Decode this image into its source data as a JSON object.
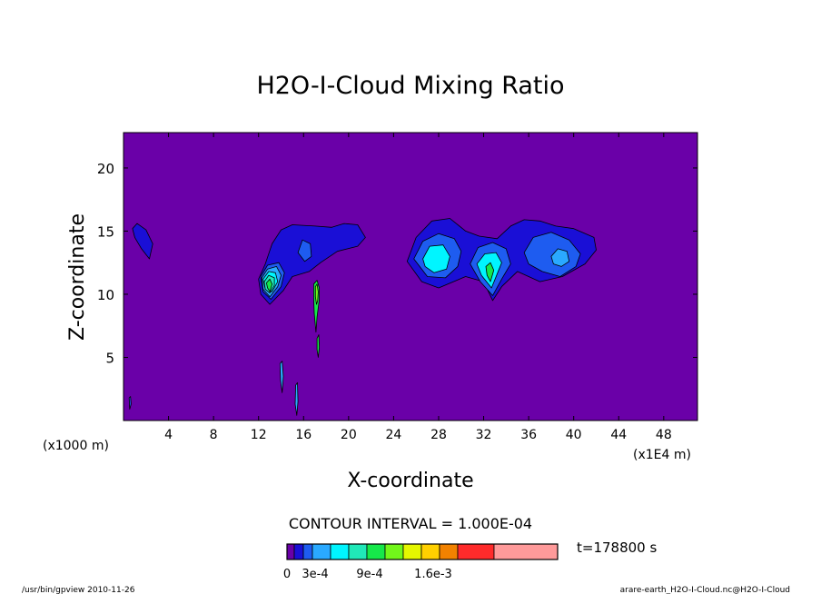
{
  "chart_data": {
    "type": "contour",
    "title": "H2O-I-Cloud Mixing Ratio",
    "xlabel": "X-coordinate",
    "ylabel": "Z-coordinate",
    "x_scale_label": "(x1000 m)",
    "x_unit_label": "(x1E4 m)",
    "xlim": [
      0,
      51
    ],
    "ylim": [
      0,
      22.8
    ],
    "x_ticks": [
      4,
      8,
      12,
      16,
      20,
      24,
      28,
      32,
      36,
      40,
      44,
      48
    ],
    "y_ticks": [
      5,
      10,
      15,
      20
    ],
    "contour_interval_text": "CONTOUR INTERVAL = 1.000E-04",
    "time_text": "t=178800 s",
    "colorbar": {
      "colors": [
        "#6a00a8",
        "#1a0fd6",
        "#1e5cf0",
        "#2aa9ff",
        "#00f5ff",
        "#20e8b8",
        "#16e84a",
        "#72f71a",
        "#e5f700",
        "#ffd000",
        "#f28200",
        "#ff2b2b",
        "#ff9a9a"
      ],
      "labels": [
        "0",
        "3e-4",
        "9e-4",
        "1.6e-3"
      ]
    },
    "regions": [
      {
        "level": 1,
        "points": [
          [
            0.8,
            15.2
          ],
          [
            1.2,
            15.6
          ],
          [
            2.0,
            15.1
          ],
          [
            2.6,
            14.0
          ],
          [
            2.3,
            12.8
          ],
          [
            1.6,
            13.6
          ],
          [
            1.0,
            14.5
          ]
        ]
      },
      {
        "level": 1,
        "points": [
          [
            12.0,
            11.2
          ],
          [
            12.6,
            12.4
          ],
          [
            13.2,
            14.0
          ],
          [
            14.0,
            15.1
          ],
          [
            15.0,
            15.5
          ],
          [
            17.0,
            15.4
          ],
          [
            18.5,
            15.3
          ],
          [
            19.6,
            15.6
          ],
          [
            20.8,
            15.5
          ],
          [
            21.5,
            14.5
          ],
          [
            20.8,
            13.8
          ],
          [
            19.0,
            13.4
          ],
          [
            17.5,
            12.5
          ],
          [
            16.5,
            11.8
          ],
          [
            15.0,
            11.4
          ],
          [
            14.2,
            10.3
          ],
          [
            13.0,
            9.2
          ],
          [
            12.2,
            10.0
          ]
        ]
      },
      {
        "level": 1,
        "points": [
          [
            25.2,
            12.6
          ],
          [
            26.0,
            14.5
          ],
          [
            27.4,
            15.8
          ],
          [
            29.0,
            16.0
          ],
          [
            30.4,
            15.0
          ],
          [
            31.6,
            14.6
          ],
          [
            33.2,
            14.4
          ],
          [
            34.4,
            15.4
          ],
          [
            35.6,
            15.9
          ],
          [
            37.0,
            15.8
          ],
          [
            38.4,
            15.4
          ],
          [
            40.0,
            15.2
          ],
          [
            41.8,
            14.5
          ],
          [
            42.0,
            13.5
          ],
          [
            41.0,
            12.4
          ],
          [
            39.0,
            11.4
          ],
          [
            37.0,
            11.0
          ],
          [
            35.0,
            11.8
          ],
          [
            33.6,
            10.6
          ],
          [
            32.8,
            9.5
          ],
          [
            32.0,
            11.0
          ],
          [
            30.4,
            11.4
          ],
          [
            28.0,
            10.5
          ],
          [
            26.5,
            11.0
          ]
        ]
      },
      {
        "level": 2,
        "points": [
          [
            12.2,
            11.4
          ],
          [
            12.8,
            12.3
          ],
          [
            13.8,
            12.5
          ],
          [
            14.3,
            11.7
          ],
          [
            14.0,
            10.6
          ],
          [
            13.1,
            9.6
          ],
          [
            12.4,
            10.2
          ]
        ]
      },
      {
        "level": 2,
        "points": [
          [
            15.5,
            13.3
          ],
          [
            15.9,
            14.3
          ],
          [
            16.6,
            14.0
          ],
          [
            16.7,
            13.0
          ],
          [
            16.1,
            12.6
          ]
        ]
      },
      {
        "level": 2,
        "points": [
          [
            25.8,
            12.8
          ],
          [
            26.6,
            14.2
          ],
          [
            28.0,
            14.8
          ],
          [
            29.4,
            14.4
          ],
          [
            30.0,
            13.4
          ],
          [
            29.7,
            12.2
          ],
          [
            28.6,
            11.3
          ],
          [
            27.0,
            11.4
          ]
        ]
      },
      {
        "level": 2,
        "points": [
          [
            30.8,
            12.4
          ],
          [
            31.5,
            13.7
          ],
          [
            32.8,
            14.1
          ],
          [
            34.0,
            13.6
          ],
          [
            34.4,
            12.4
          ],
          [
            33.6,
            11.2
          ],
          [
            32.8,
            9.9
          ],
          [
            31.7,
            11.0
          ]
        ]
      },
      {
        "level": 2,
        "points": [
          [
            35.6,
            13.3
          ],
          [
            36.4,
            14.5
          ],
          [
            38.0,
            14.9
          ],
          [
            39.6,
            14.3
          ],
          [
            40.6,
            13.2
          ],
          [
            40.2,
            12.2
          ],
          [
            38.8,
            11.4
          ],
          [
            37.2,
            11.8
          ],
          [
            36.0,
            12.4
          ]
        ]
      },
      {
        "level": 3,
        "points": [
          [
            12.3,
            11.3
          ],
          [
            12.8,
            12.0
          ],
          [
            13.6,
            12.2
          ],
          [
            14.0,
            11.5
          ],
          [
            13.7,
            10.6
          ],
          [
            13.0,
            9.8
          ],
          [
            12.4,
            10.4
          ]
        ]
      },
      {
        "level": 3,
        "points": [
          [
            38.0,
            13.0
          ],
          [
            38.6,
            13.6
          ],
          [
            39.4,
            13.4
          ],
          [
            39.6,
            12.6
          ],
          [
            38.9,
            12.2
          ],
          [
            38.2,
            12.4
          ]
        ]
      },
      {
        "level": 4,
        "points": [
          [
            12.4,
            11.2
          ],
          [
            12.9,
            11.8
          ],
          [
            13.5,
            11.7
          ],
          [
            13.7,
            11.0
          ],
          [
            13.2,
            10.2
          ],
          [
            12.6,
            10.4
          ]
        ]
      },
      {
        "level": 4,
        "points": [
          [
            26.6,
            12.8
          ],
          [
            27.2,
            13.8
          ],
          [
            28.4,
            13.9
          ],
          [
            29.0,
            13.0
          ],
          [
            28.7,
            12.0
          ],
          [
            27.6,
            11.7
          ],
          [
            26.8,
            12.2
          ]
        ]
      },
      {
        "level": 4,
        "points": [
          [
            31.4,
            12.4
          ],
          [
            32.1,
            13.2
          ],
          [
            33.1,
            13.3
          ],
          [
            33.6,
            12.5
          ],
          [
            33.2,
            11.6
          ],
          [
            32.7,
            10.5
          ],
          [
            31.8,
            11.5
          ]
        ]
      },
      {
        "level": 5,
        "points": [
          [
            12.5,
            11.0
          ],
          [
            12.9,
            11.5
          ],
          [
            13.4,
            11.3
          ],
          [
            13.4,
            10.7
          ],
          [
            13.0,
            10.1
          ],
          [
            12.6,
            10.4
          ]
        ]
      },
      {
        "level": 6,
        "points": [
          [
            12.7,
            10.9
          ],
          [
            13.0,
            11.2
          ],
          [
            13.2,
            10.8
          ],
          [
            13.0,
            10.2
          ],
          [
            12.8,
            10.5
          ]
        ]
      },
      {
        "level": 6,
        "points": [
          [
            32.2,
            12.2
          ],
          [
            32.6,
            12.5
          ],
          [
            32.9,
            11.9
          ],
          [
            32.6,
            11.0
          ],
          [
            32.3,
            11.5
          ]
        ]
      },
      {
        "level": 6,
        "points": [
          [
            16.9,
            10.8
          ],
          [
            17.2,
            11.1
          ],
          [
            17.4,
            10.5
          ],
          [
            17.4,
            9.6
          ],
          [
            17.2,
            8.2
          ],
          [
            17.1,
            7.0
          ],
          [
            16.95,
            8.5
          ],
          [
            16.9,
            9.8
          ]
        ]
      },
      {
        "level": 7,
        "points": [
          [
            17.05,
            10.6
          ],
          [
            17.2,
            10.8
          ],
          [
            17.3,
            10.2
          ],
          [
            17.25,
            9.5
          ],
          [
            17.15,
            9.2
          ],
          [
            17.05,
            9.8
          ]
        ]
      },
      {
        "level": 6,
        "points": [
          [
            17.2,
            6.5
          ],
          [
            17.35,
            6.8
          ],
          [
            17.4,
            5.8
          ],
          [
            17.3,
            5.0
          ],
          [
            17.2,
            5.6
          ]
        ]
      },
      {
        "level": 3,
        "points": [
          [
            13.9,
            4.5
          ],
          [
            14.1,
            4.7
          ],
          [
            14.2,
            3.5
          ],
          [
            14.1,
            2.2
          ],
          [
            13.95,
            3.2
          ]
        ]
      },
      {
        "level": 3,
        "points": [
          [
            15.3,
            2.8
          ],
          [
            15.45,
            3.0
          ],
          [
            15.5,
            1.5
          ],
          [
            15.4,
            0.4
          ],
          [
            15.25,
            1.3
          ]
        ]
      },
      {
        "level": 2,
        "points": [
          [
            0.5,
            1.8
          ],
          [
            0.62,
            1.9
          ],
          [
            0.68,
            1.3
          ],
          [
            0.55,
            0.9
          ]
        ]
      }
    ]
  },
  "footer": {
    "left": "/usr/bin/gpview  2010-11-26",
    "right": "arare-earth_H2O-I-Cloud.nc@H2O-I-Cloud"
  }
}
